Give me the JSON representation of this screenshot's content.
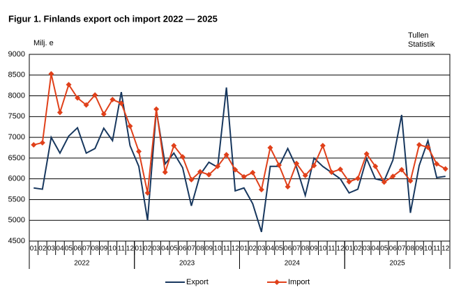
{
  "chart_data": {
    "type": "line",
    "title": "Figur 1. Finlands export och import 2022 — 2025",
    "y_label": "Milj. e",
    "source": [
      "Tullen",
      "Statistik"
    ],
    "categories": [
      "01",
      "02",
      "03",
      "04",
      "05",
      "06",
      "07",
      "08",
      "09",
      "10",
      "11",
      "12",
      "01",
      "02",
      "03",
      "04",
      "05",
      "06",
      "07",
      "08",
      "09",
      "10",
      "11",
      "12",
      "01",
      "02",
      "03",
      "04",
      "05",
      "06",
      "07",
      "08",
      "09",
      "10",
      "11",
      "12",
      "01",
      "02",
      "03",
      "04",
      "05",
      "06",
      "07",
      "08",
      "09",
      "10",
      "11",
      "12"
    ],
    "years": [
      "2022",
      "2023",
      "2024",
      "2025"
    ],
    "ylim": [
      4500,
      9000
    ],
    "yticks": [
      4500,
      5000,
      5500,
      6000,
      6500,
      7000,
      7500,
      8000,
      8500,
      9000
    ],
    "grid": true,
    "legend": "bottom",
    "series": [
      {
        "name": "Export",
        "color": "#17375e",
        "marker": false,
        "values": [
          5780,
          5750,
          7000,
          6620,
          7030,
          7230,
          6620,
          6730,
          7220,
          6920,
          8090,
          6800,
          6300,
          5000,
          7650,
          6360,
          6620,
          6270,
          5350,
          6100,
          6400,
          6280,
          8200,
          5710,
          5780,
          5400,
          4720,
          6300,
          6300,
          6730,
          6280,
          5600,
          6500,
          6300,
          6150,
          6000,
          5660,
          5750,
          6490,
          6000,
          5950,
          6450,
          7540,
          5180,
          6320,
          6920,
          6030,
          6060
        ]
      },
      {
        "name": "Import",
        "color": "#e0401a",
        "marker": true,
        "values": [
          6820,
          6870,
          8530,
          7600,
          8270,
          7950,
          7780,
          8020,
          7560,
          7910,
          7820,
          7270,
          6660,
          5660,
          7680,
          6160,
          6800,
          6530,
          5980,
          6170,
          6100,
          6300,
          6580,
          6220,
          6050,
          6150,
          5740,
          6750,
          6330,
          5810,
          6370,
          6080,
          6320,
          6800,
          6160,
          6230,
          5930,
          6010,
          6600,
          6300,
          5920,
          6060,
          6220,
          5950,
          6820,
          6760,
          6360,
          6240
        ]
      }
    ]
  }
}
